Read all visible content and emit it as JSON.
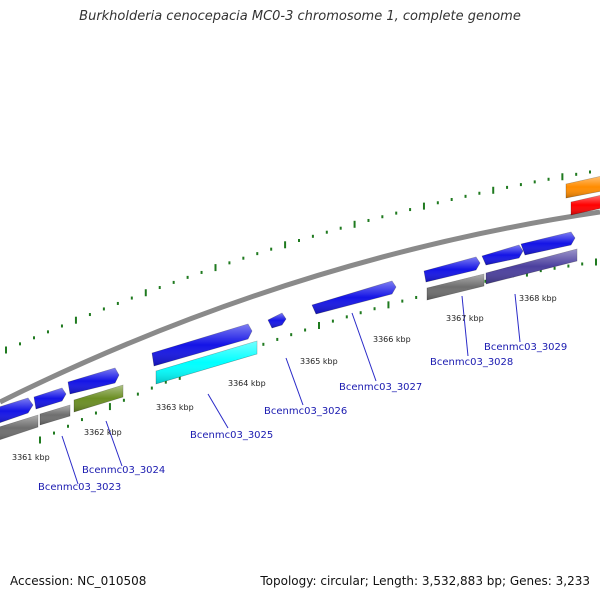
{
  "title": "Burkholderia cenocepacia MC0-3 chromosome 1, complete genome",
  "footer": {
    "accession": "Accession: NC_010508",
    "summary": "Topology: circular; Length: 3,532,883 bp; Genes: 3,233"
  },
  "colors": {
    "backbone": "#8a8a8a",
    "tick": "#1f7a1f",
    "gene_label": "#1a1ab0",
    "leader_line": "#2a2ac8"
  },
  "kbp_labels": [
    "3361 kbp",
    "3362 kbp",
    "3363 kbp",
    "3364 kbp",
    "3365 kbp",
    "3366 kbp",
    "3367 kbp",
    "3368 kbp"
  ],
  "gene_labels": [
    "Bcenmc03_3023",
    "Bcenmc03_3024",
    "Bcenmc03_3025",
    "Bcenmc03_3026",
    "Bcenmc03_3027",
    "Bcenmc03_3028",
    "Bcenmc03_3029"
  ],
  "features": [
    {
      "kind": "cds",
      "color": "#1414e6"
    },
    {
      "kind": "cds",
      "color": "#1414e6"
    },
    {
      "kind": "cds",
      "color": "#1414e6"
    },
    {
      "kind": "cds",
      "color": "#1414e6"
    },
    {
      "kind": "cds",
      "color": "#1414e6"
    },
    {
      "kind": "cds",
      "color": "#1414e6"
    },
    {
      "kind": "cds",
      "color": "#1414e6"
    },
    {
      "kind": "cds",
      "color": "#1414e6"
    },
    {
      "kind": "cds",
      "color": "#1414e6"
    },
    {
      "kind": "cog",
      "color": "#6e6e6e"
    },
    {
      "kind": "cog",
      "color": "#6e6e6e"
    },
    {
      "kind": "cog",
      "color": "#6b8e23"
    },
    {
      "kind": "cog",
      "color": "#00ffff"
    },
    {
      "kind": "cog",
      "color": "#6e6e6e"
    },
    {
      "kind": "cog",
      "color": "#4b3f9e"
    },
    {
      "kind": "cog",
      "color": "#ff8c00"
    },
    {
      "kind": "cog",
      "color": "#ff0000"
    }
  ]
}
